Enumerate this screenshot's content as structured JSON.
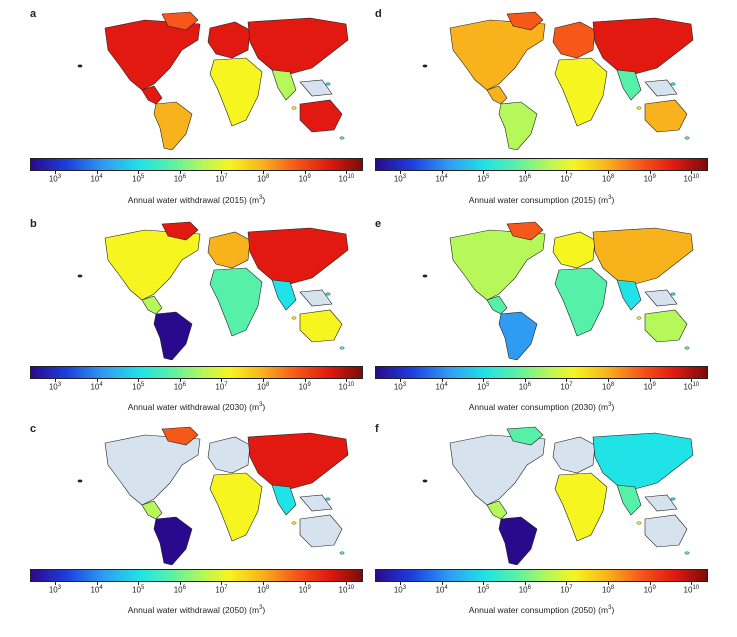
{
  "colorbar": {
    "ticks": [
      {
        "base": "10",
        "exp": "3"
      },
      {
        "base": "10",
        "exp": "4"
      },
      {
        "base": "10",
        "exp": "5"
      },
      {
        "base": "10",
        "exp": "6"
      },
      {
        "base": "10",
        "exp": "7"
      },
      {
        "base": "10",
        "exp": "8"
      },
      {
        "base": "10",
        "exp": "9"
      },
      {
        "base": "10",
        "exp": "10"
      }
    ],
    "unit_exp": "3",
    "range_log10": [
      2.4,
      10.4
    ]
  },
  "panels": [
    {
      "letter": "a",
      "caption": "Annual water withdrawal (2015) (m",
      "caption_end": ")",
      "palette": [
        "#e11911",
        "#f6581a",
        "#e11911",
        "#f8b21b",
        "#e11911",
        "#f6f51f",
        "#e11911",
        "#b6f75a",
        "#e11911",
        "#d6e2ee"
      ]
    },
    {
      "letter": "d",
      "caption": "Annual water consumption (2015) (m",
      "caption_end": ")",
      "palette": [
        "#f8b21b",
        "#f6581a",
        "#f8b21b",
        "#b6f75a",
        "#f6581a",
        "#f6f51f",
        "#e11911",
        "#57f0a8",
        "#f8b21b",
        "#d6e2ee"
      ]
    },
    {
      "letter": "b",
      "caption": "Annual water withdrawal (2030) (m",
      "caption_end": ")",
      "palette": [
        "#f6f51f",
        "#e11911",
        "#b6f75a",
        "#2a0a8c",
        "#f8b21b",
        "#57f0a8",
        "#e11911",
        "#1fe3e6",
        "#f6f51f",
        "#d6e2ee"
      ]
    },
    {
      "letter": "e",
      "caption": "Annual water consumption (2030) (m",
      "caption_end": ")",
      "palette": [
        "#b6f75a",
        "#f6581a",
        "#57f0a8",
        "#2f9cf2",
        "#f6f51f",
        "#57f0a8",
        "#f8b21b",
        "#1fe3e6",
        "#b6f75a",
        "#d6e2ee"
      ]
    },
    {
      "letter": "c",
      "caption": "Annual water withdrawal (2050) (m",
      "caption_end": ")",
      "palette": [
        "#d6e2ee",
        "#f6581a",
        "#b6f75a",
        "#2a0a8c",
        "#d6e2ee",
        "#f6f51f",
        "#e11911",
        "#1fe3e6",
        "#d6e2ee",
        "#d6e2ee"
      ]
    },
    {
      "letter": "f",
      "caption": "Annual water consumption (2050) (m",
      "caption_end": ")",
      "palette": [
        "#d6e2ee",
        "#57f0a8",
        "#b6f75a",
        "#2a0a8c",
        "#d6e2ee",
        "#f6f51f",
        "#1fe3e6",
        "#57f0a8",
        "#d6e2ee",
        "#d6e2ee"
      ]
    }
  ]
}
